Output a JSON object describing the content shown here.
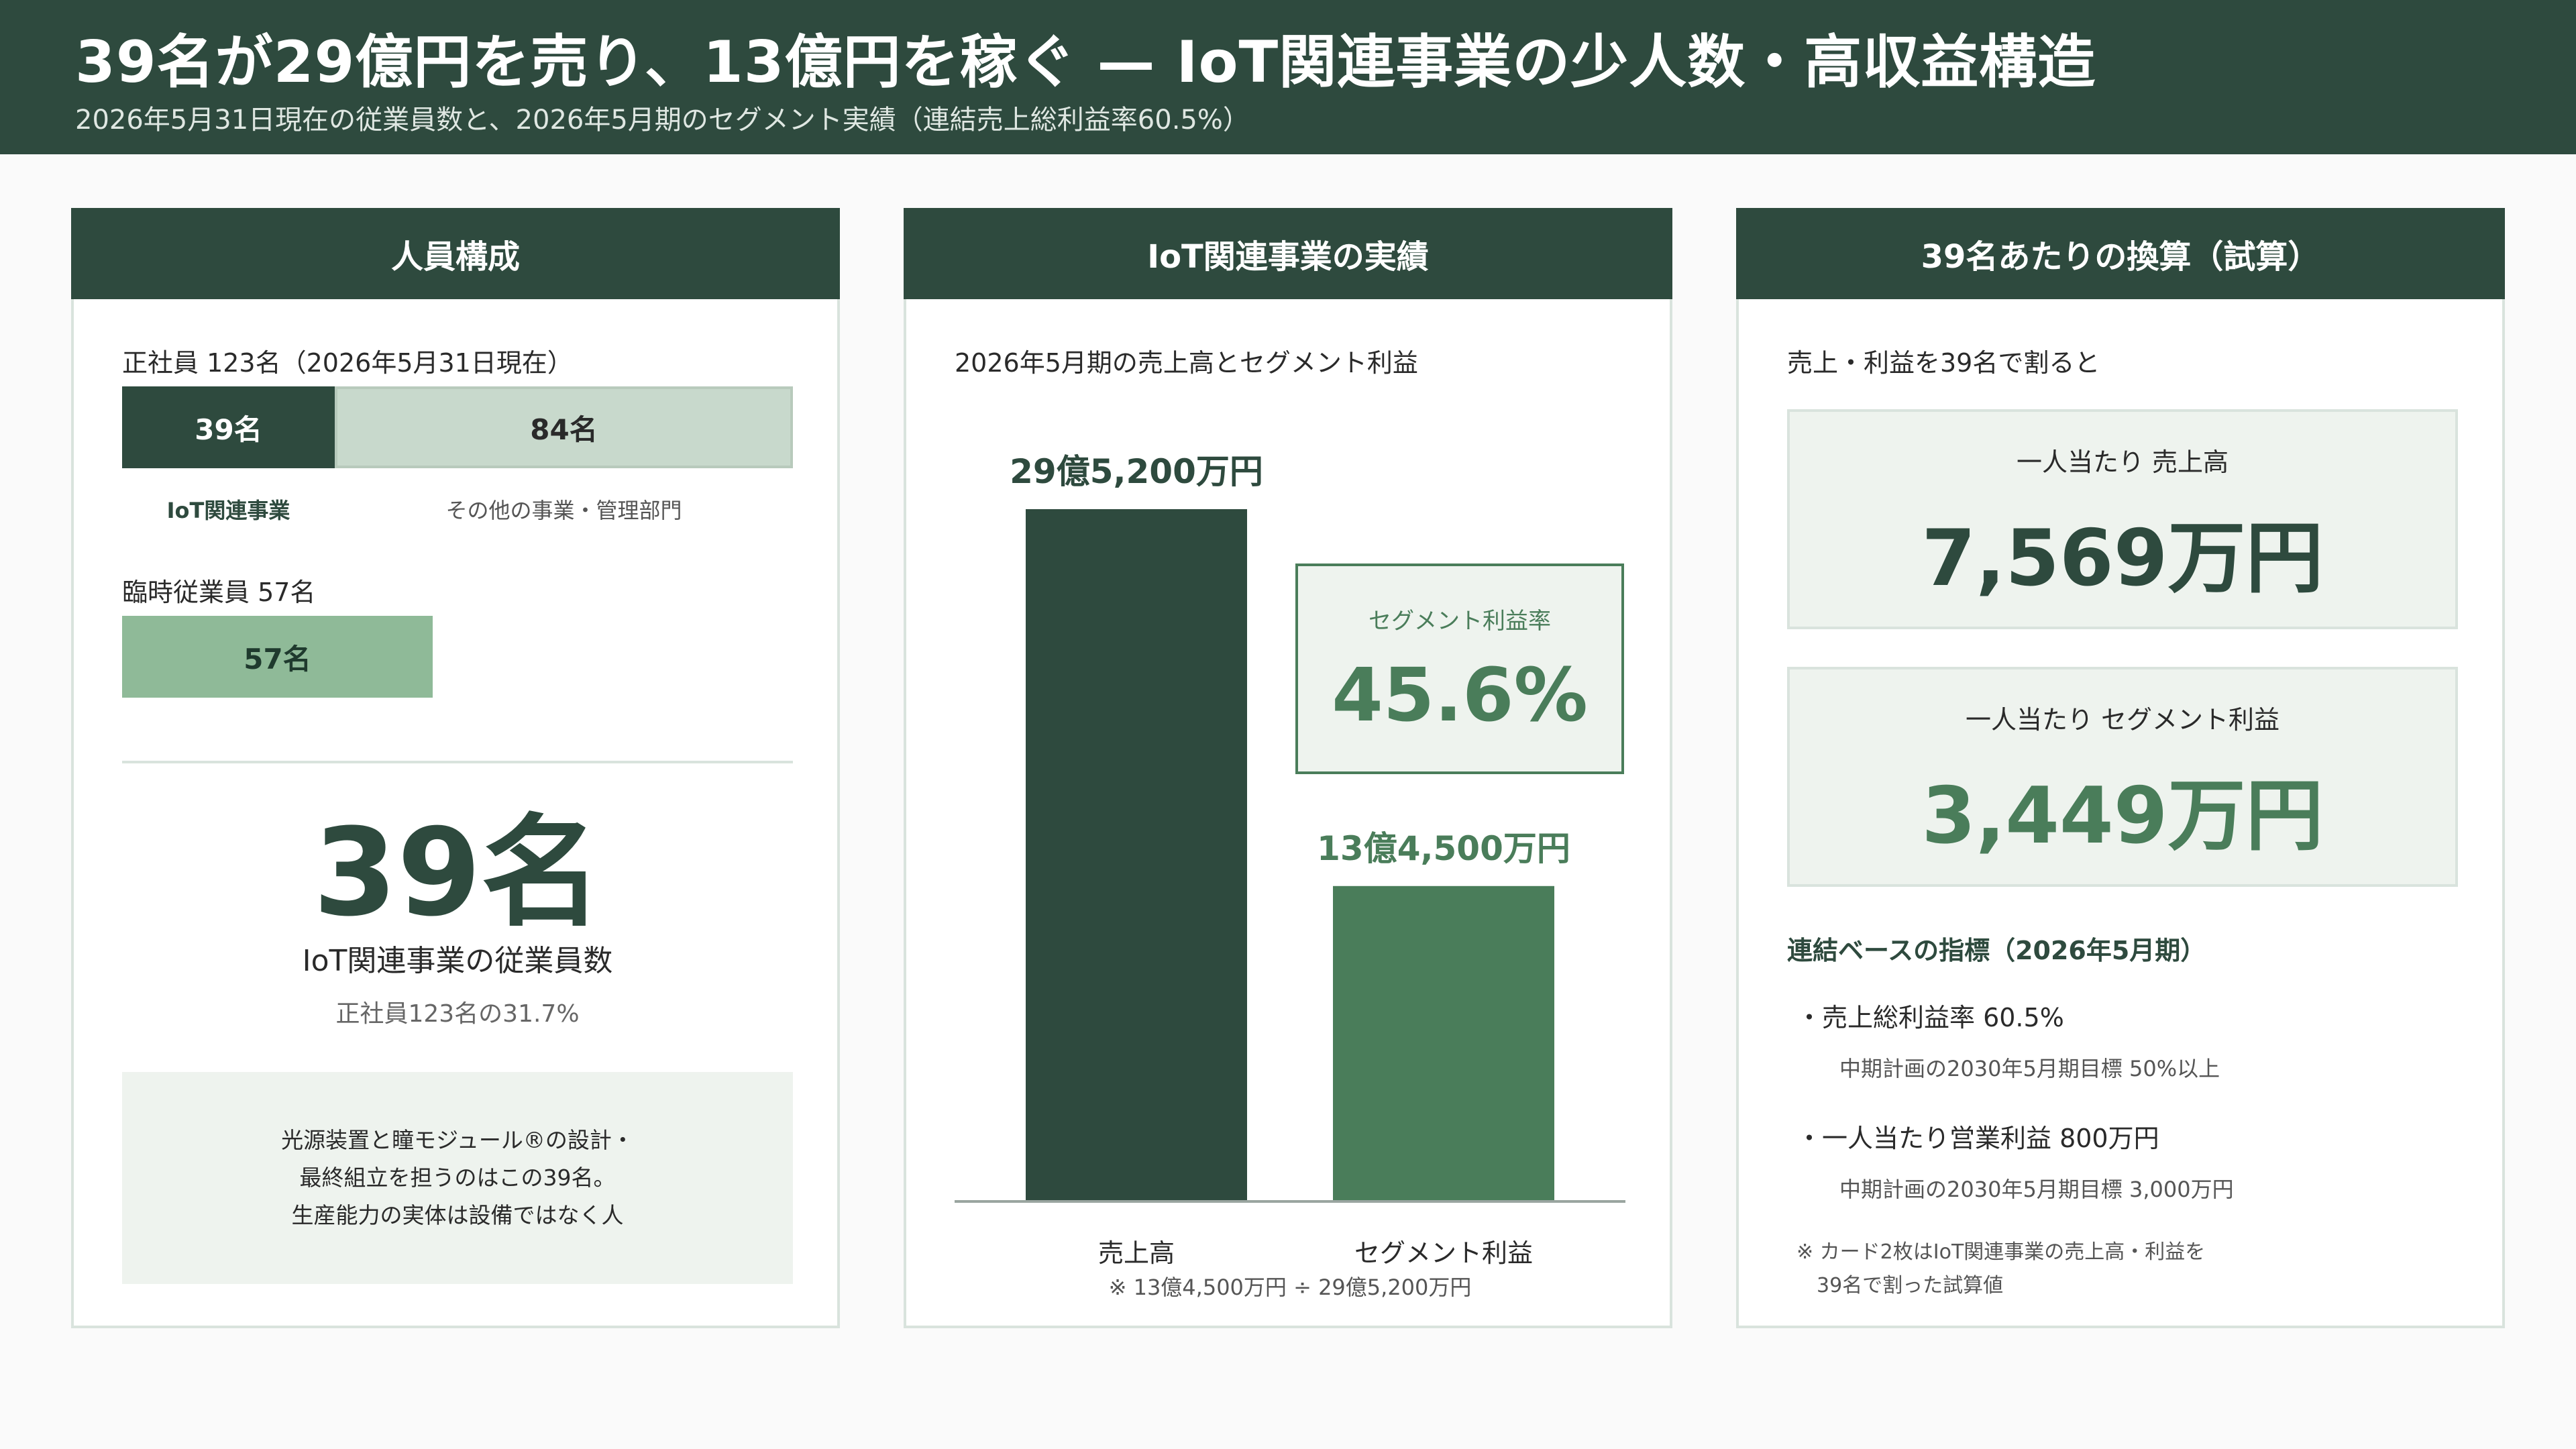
{
  "header": {
    "title": "39名が29億円を売り、13億円を稼ぐ — IoT関連事業の少人数・高収益構造",
    "subtitle": "2026年5月31日現在の従業員数と、2026年5月期のセグメント実績（連結売上総利益率60.5%）"
  },
  "colors": {
    "dark_green": "#2e4a3e",
    "mid_green": "#4a7d5a",
    "light_green": "#c8d9cc",
    "pale_green": "#8fba98",
    "bg_tint": "#eef3ee"
  },
  "card1": {
    "title": "人員構成",
    "fulltime_label": "正社員 123名（2026年5月31日現在）",
    "fulltime_total": 123,
    "seg_iot_value": 39,
    "seg_iot_text": "39名",
    "seg_other_value": 84,
    "seg_other_text": "84名",
    "seg_iot_caption": "IoT関連事業",
    "seg_other_caption": "その他の事業・管理部門",
    "temp_label": "臨時従業員 57名",
    "temp_value": 57,
    "temp_text": "57名",
    "big_number": "39名",
    "big_caption": "IoT関連事業の従業員数",
    "big_sub": "正社員123名の31.7%",
    "note_lines": [
      "光源装置と瞳モジュール®の設計・",
      "最終組立を担うのはこの39名。",
      "生産能力の実体は設備ではなく人"
    ]
  },
  "card2": {
    "title": "IoT関連事業の実績",
    "caption": "2026年5月期の売上高とセグメント利益",
    "rate_label": "セグメント利益率",
    "rate_value": "45.6%",
    "footnote": "※ 13億4,500万円 ÷ 29億5,200万円"
  },
  "chart_data": {
    "type": "bar",
    "title": "2026年5月期の売上高とセグメント利益",
    "categories": [
      "売上高",
      "セグメント利益"
    ],
    "values": [
      295200,
      134500
    ],
    "value_labels": [
      "29億5,200万円",
      "13億4,500万円"
    ],
    "unit": "万円",
    "ylim": [
      0,
      295200
    ],
    "grid": false,
    "legend": "none"
  },
  "card3": {
    "title": "39名あたりの換算（試算）",
    "caption": "売上・利益を39名で割ると",
    "kpi1_label": "一人当たり 売上高",
    "kpi1_value": "7,569万円",
    "kpi2_label": "一人当たり セグメント利益",
    "kpi2_value": "3,449万円",
    "section_title": "連結ベースの指標（2026年5月期）",
    "item1": "・売上総利益率 60.5%",
    "item1_sub": "中期計画の2030年5月期目標 50%以上",
    "item2": "・一人当たり営業利益 800万円",
    "item2_sub": "中期計画の2030年5月期目標 3,000万円",
    "footnote_lines": [
      "※ カード2枚はIoT関連事業の売上高・利益を",
      "39名で割った試算値"
    ]
  }
}
